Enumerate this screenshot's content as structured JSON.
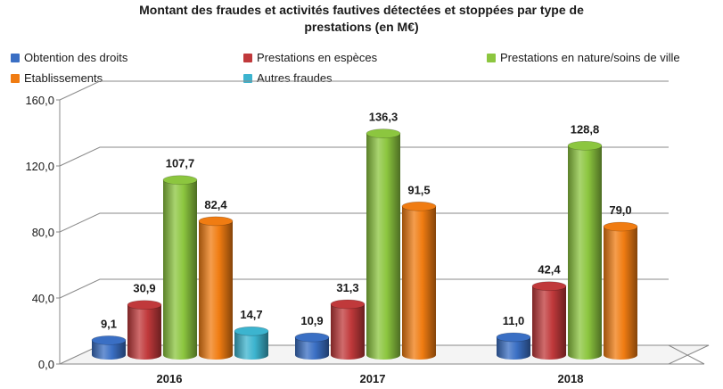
{
  "chart_data": {
    "type": "bar",
    "title_line1": "Montant des fraudes et activités fautives détectées et stoppées par type de",
    "title_line2": "prestations (en M€)",
    "categories": [
      "2016",
      "2017",
      "2018"
    ],
    "ylim": [
      0,
      160
    ],
    "yticks": [
      "0,0",
      "40,0",
      "80,0",
      "120,0",
      "160,0"
    ],
    "grid": true,
    "legend_position": "top",
    "series": [
      {
        "name": "Obtention des droits",
        "color": "#3a6fc4",
        "values": [
          9.1,
          10.9,
          11.0
        ],
        "labels": [
          "9,1",
          "10,9",
          "11,0"
        ]
      },
      {
        "name": "Prestations en espèces",
        "color": "#c0393b",
        "values": [
          30.9,
          31.3,
          42.4
        ],
        "labels": [
          "30,9",
          "31,3",
          "42,4"
        ]
      },
      {
        "name": "Prestations en nature/soins de ville",
        "color": "#8cc63f",
        "values": [
          107.7,
          136.3,
          128.8
        ],
        "labels": [
          "107,7",
          "136,3",
          "128,8"
        ]
      },
      {
        "name": "Etablissements",
        "color": "#f07c12",
        "values": [
          82.4,
          91.5,
          79.0
        ],
        "labels": [
          "82,4",
          "91,5",
          "79,0"
        ]
      },
      {
        "name": "Autres fraudes",
        "color": "#3cb4cf",
        "values": [
          14.7,
          null,
          null
        ],
        "labels": [
          "14,7",
          "",
          ""
        ]
      }
    ]
  }
}
